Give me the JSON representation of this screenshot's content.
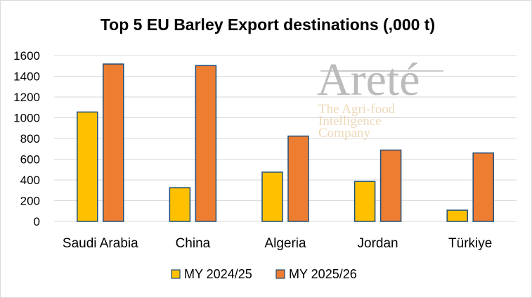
{
  "chart_data": {
    "type": "bar",
    "title": "Top 5 EU Barley Export destinations (,000 t)",
    "xlabel": "",
    "ylabel": "",
    "categories": [
      "Saudi Arabia",
      "China",
      "Algeria",
      "Jordan",
      "Türkiye"
    ],
    "series": [
      {
        "name": "MY 2024/25",
        "values": [
          1055,
          325,
          475,
          385,
          108
        ],
        "color": "#ffc000"
      },
      {
        "name": "MY 2025/26",
        "values": [
          1518,
          1503,
          823,
          688,
          660
        ],
        "color": "#ed7d31"
      }
    ],
    "ylim": [
      0,
      1600
    ],
    "yticks": [
      0,
      200,
      400,
      600,
      800,
      1000,
      1200,
      1400,
      1600
    ],
    "grid": true,
    "legend_position": "bottom",
    "bar_outline_color": "#1f4e79"
  },
  "watermark": {
    "brand": "Areté",
    "tagline_lines": [
      "The Agri-food",
      "Intelligence",
      "Company"
    ]
  }
}
